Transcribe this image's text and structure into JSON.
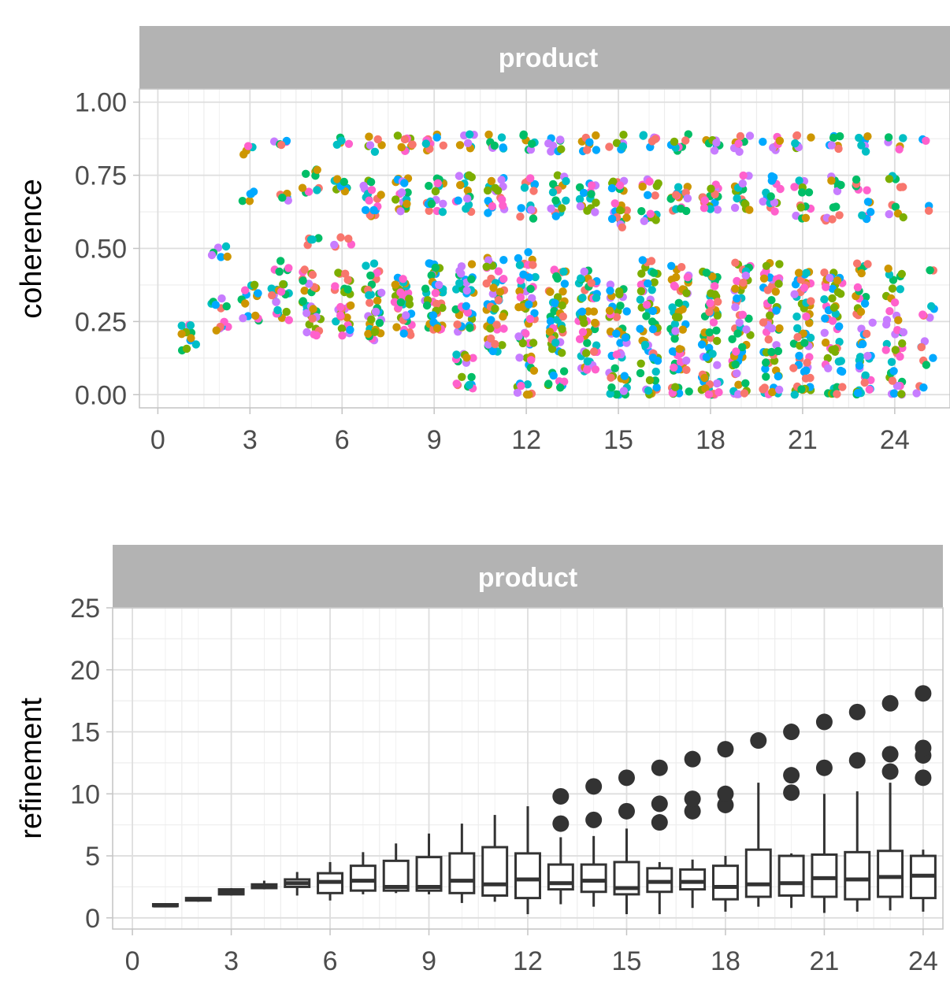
{
  "colors": {
    "strip": "#b3b3b3",
    "grid_major": "#dedede",
    "grid_minor": "#ededed",
    "panel_border": "#c4c4c4",
    "box": "#333333",
    "palette": [
      "#f8766d",
      "#cd9600",
      "#7cae00",
      "#00be67",
      "#00bfc4",
      "#00a9ff",
      "#c77cff",
      "#ff61cc"
    ]
  },
  "chart_data": [
    {
      "type": "scatter",
      "facet_label": "product",
      "xlabel": "",
      "ylabel": "coherence",
      "xlim": [
        -0.6,
        25.8
      ],
      "ylim": [
        -0.045,
        1.045
      ],
      "x_ticks": [
        0,
        3,
        6,
        9,
        12,
        15,
        18,
        21,
        24
      ],
      "x_tick_labels": [
        "0",
        "3",
        "6",
        "9",
        "12",
        "15",
        "18",
        "21",
        "24"
      ],
      "y_ticks": [
        0,
        0.25,
        0.5,
        0.75,
        1.0
      ],
      "y_tick_labels": [
        "0.00",
        "0.25",
        "0.50",
        "0.75",
        "1.00"
      ],
      "grid": true,
      "jitter_width": 0.3,
      "clusters": [
        {
          "x": 1,
          "levels": [
            0.17,
            0.21,
            0.23
          ],
          "band": 0.03,
          "n": 12
        },
        {
          "x": 2,
          "levels": [
            0.23,
            0.31,
            0.49
          ],
          "band": 0.02,
          "n": 18
        },
        {
          "x": 3,
          "levels": [
            0.26,
            0.33,
            0.36,
            0.68,
            0.83
          ],
          "band": 0.02,
          "n": 24
        },
        {
          "x": 4,
          "levels": [
            0.27,
            0.33,
            0.37,
            0.44,
            0.68,
            0.86
          ],
          "band": 0.02,
          "n": 34
        },
        {
          "x": 5,
          "levels": [
            0.22,
            0.27,
            0.3,
            0.37,
            0.41,
            0.52,
            0.71,
            0.76
          ],
          "band": 0.02,
          "n": 44
        },
        {
          "x": 6,
          "levels": [
            0.22,
            0.26,
            0.31,
            0.36,
            0.4,
            0.52,
            0.71,
            0.72,
            0.86
          ],
          "band": 0.02,
          "n": 50
        },
        {
          "x": 7,
          "levels": [
            0.2,
            0.25,
            0.3,
            0.35,
            0.42,
            0.64,
            0.66,
            0.71,
            0.86
          ],
          "band": 0.03,
          "n": 58
        },
        {
          "x": 8,
          "levels": [
            0.23,
            0.28,
            0.33,
            0.39,
            0.65,
            0.71,
            0.86
          ],
          "band": 0.03,
          "n": 64
        },
        {
          "x": 9,
          "levels": [
            0.24,
            0.3,
            0.36,
            0.42,
            0.65,
            0.71,
            0.86
          ],
          "band": 0.03,
          "n": 66
        },
        {
          "x": 10,
          "levels": [
            0.04,
            0.12,
            0.23,
            0.3,
            0.36,
            0.42,
            0.65,
            0.72,
            0.86
          ],
          "band": 0.03,
          "n": 70
        },
        {
          "x": 11,
          "levels": [
            0.17,
            0.25,
            0.31,
            0.37,
            0.44,
            0.65,
            0.72,
            0.86
          ],
          "band": 0.03,
          "n": 74
        },
        {
          "x": 12,
          "levels": [
            0.02,
            0.1,
            0.2,
            0.27,
            0.33,
            0.39,
            0.46,
            0.63,
            0.72,
            0.86
          ],
          "band": 0.03,
          "n": 76
        },
        {
          "x": 13,
          "levels": [
            0.05,
            0.16,
            0.22,
            0.28,
            0.34,
            0.4,
            0.64,
            0.72,
            0.86
          ],
          "band": 0.03,
          "n": 76
        },
        {
          "x": 14,
          "levels": [
            0.09,
            0.16,
            0.22,
            0.28,
            0.34,
            0.41,
            0.64,
            0.7,
            0.86
          ],
          "band": 0.03,
          "n": 78
        },
        {
          "x": 15,
          "levels": [
            0.0,
            0.08,
            0.15,
            0.22,
            0.29,
            0.35,
            0.6,
            0.63,
            0.71,
            0.86
          ],
          "band": 0.03,
          "n": 80
        },
        {
          "x": 16,
          "levels": [
            0.02,
            0.1,
            0.17,
            0.24,
            0.3,
            0.37,
            0.44,
            0.61,
            0.71,
            0.86
          ],
          "band": 0.03,
          "n": 82
        },
        {
          "x": 17,
          "levels": [
            0.0,
            0.1,
            0.16,
            0.22,
            0.29,
            0.36,
            0.42,
            0.65,
            0.69,
            0.86
          ],
          "band": 0.03,
          "n": 82
        },
        {
          "x": 18,
          "levels": [
            0.0,
            0.06,
            0.13,
            0.2,
            0.27,
            0.33,
            0.4,
            0.65,
            0.69,
            0.86
          ],
          "band": 0.03,
          "n": 82
        },
        {
          "x": 19,
          "levels": [
            0.01,
            0.1,
            0.16,
            0.23,
            0.3,
            0.37,
            0.43,
            0.65,
            0.72,
            0.86
          ],
          "band": 0.03,
          "n": 80
        },
        {
          "x": 20,
          "levels": [
            0.0,
            0.09,
            0.16,
            0.23,
            0.3,
            0.37,
            0.42,
            0.65,
            0.72,
            0.86
          ],
          "band": 0.03,
          "n": 78
        },
        {
          "x": 21,
          "levels": [
            0.0,
            0.08,
            0.15,
            0.22,
            0.29,
            0.36,
            0.4,
            0.62,
            0.72,
            0.86
          ],
          "band": 0.03,
          "n": 76
        },
        {
          "x": 22,
          "levels": [
            0.0,
            0.1,
            0.17,
            0.24,
            0.3,
            0.37,
            0.4,
            0.62,
            0.72,
            0.86
          ],
          "band": 0.03,
          "n": 70
        },
        {
          "x": 23,
          "levels": [
            0.0,
            0.07,
            0.14,
            0.2,
            0.27,
            0.34,
            0.42,
            0.63,
            0.72,
            0.86
          ],
          "band": 0.03,
          "n": 62
        },
        {
          "x": 24,
          "levels": [
            0.0,
            0.06,
            0.13,
            0.2,
            0.26,
            0.34,
            0.42,
            0.62,
            0.72,
            0.86
          ],
          "band": 0.03,
          "n": 54
        },
        {
          "x": 25,
          "levels": [
            0.0,
            0.1,
            0.18,
            0.26,
            0.3,
            0.4,
            0.65,
            0.86
          ],
          "band": 0.03,
          "n": 20
        }
      ]
    },
    {
      "type": "box",
      "facet_label": "product",
      "xlabel": "",
      "ylabel": "refinement",
      "xlim": [
        -0.6,
        24.6
      ],
      "ylim": [
        -0.9,
        25.0
      ],
      "x_ticks": [
        0,
        3,
        6,
        9,
        12,
        15,
        18,
        21,
        24
      ],
      "x_tick_labels": [
        "0",
        "3",
        "6",
        "9",
        "12",
        "15",
        "18",
        "21",
        "24"
      ],
      "y_ticks": [
        0,
        5,
        10,
        15,
        20,
        25
      ],
      "y_tick_labels": [
        "0",
        "5",
        "10",
        "15",
        "20",
        "25"
      ],
      "grid": true,
      "boxes": [
        {
          "x": 1,
          "min": 0.9,
          "q1": 0.95,
          "median": 1.0,
          "q3": 1.1,
          "max": 1.15,
          "outliers": []
        },
        {
          "x": 2,
          "min": 1.3,
          "q1": 1.4,
          "median": 1.5,
          "q3": 1.6,
          "max": 1.65,
          "outliers": []
        },
        {
          "x": 3,
          "min": 1.8,
          "q1": 1.9,
          "median": 2.1,
          "q3": 2.3,
          "max": 2.4,
          "outliers": []
        },
        {
          "x": 4,
          "min": 2.3,
          "q1": 2.4,
          "median": 2.5,
          "q3": 2.7,
          "max": 3.0,
          "outliers": []
        },
        {
          "x": 5,
          "min": 1.8,
          "q1": 2.5,
          "median": 2.8,
          "q3": 3.1,
          "max": 3.7,
          "outliers": []
        },
        {
          "x": 6,
          "min": 1.4,
          "q1": 2.0,
          "median": 2.9,
          "q3": 3.6,
          "max": 4.5,
          "outliers": []
        },
        {
          "x": 7,
          "min": 1.9,
          "q1": 2.2,
          "median": 3.0,
          "q3": 4.2,
          "max": 5.3,
          "outliers": []
        },
        {
          "x": 8,
          "min": 2.0,
          "q1": 2.2,
          "median": 2.5,
          "q3": 4.6,
          "max": 6.0,
          "outliers": []
        },
        {
          "x": 9,
          "min": 1.9,
          "q1": 2.2,
          "median": 2.5,
          "q3": 4.9,
          "max": 6.8,
          "outliers": []
        },
        {
          "x": 10,
          "min": 1.2,
          "q1": 2.0,
          "median": 3.0,
          "q3": 5.2,
          "max": 7.6,
          "outliers": []
        },
        {
          "x": 11,
          "min": 1.3,
          "q1": 1.8,
          "median": 2.7,
          "q3": 5.7,
          "max": 8.3,
          "outliers": []
        },
        {
          "x": 12,
          "min": 0.3,
          "q1": 1.6,
          "median": 3.1,
          "q3": 5.2,
          "max": 9.0,
          "outliers": []
        },
        {
          "x": 13,
          "min": 1.1,
          "q1": 2.3,
          "median": 2.8,
          "q3": 4.3,
          "max": 6.5,
          "outliers": [
            7.6,
            9.8
          ]
        },
        {
          "x": 14,
          "min": 0.9,
          "q1": 2.1,
          "median": 3.0,
          "q3": 4.3,
          "max": 6.6,
          "outliers": [
            7.9,
            10.6
          ]
        },
        {
          "x": 15,
          "min": 0.3,
          "q1": 1.9,
          "median": 2.4,
          "q3": 4.5,
          "max": 7.2,
          "outliers": [
            8.6,
            11.3
          ]
        },
        {
          "x": 16,
          "min": 0.3,
          "q1": 2.1,
          "median": 2.9,
          "q3": 4.0,
          "max": 4.5,
          "outliers": [
            7.7,
            9.2,
            12.1
          ]
        },
        {
          "x": 17,
          "min": 0.8,
          "q1": 2.3,
          "median": 2.9,
          "q3": 3.9,
          "max": 4.7,
          "outliers": [
            8.6,
            9.6,
            12.8
          ]
        },
        {
          "x": 18,
          "min": 0.5,
          "q1": 1.5,
          "median": 2.5,
          "q3": 4.2,
          "max": 5.0,
          "outliers": [
            9.1,
            10.0,
            13.6
          ]
        },
        {
          "x": 19,
          "min": 0.9,
          "q1": 1.7,
          "median": 2.7,
          "q3": 5.5,
          "max": 10.9,
          "outliers": [
            14.3
          ]
        },
        {
          "x": 20,
          "min": 0.8,
          "q1": 1.8,
          "median": 2.8,
          "q3": 5.0,
          "max": 5.2,
          "outliers": [
            10.1,
            11.5,
            15.0
          ]
        },
        {
          "x": 21,
          "min": 0.4,
          "q1": 1.7,
          "median": 3.2,
          "q3": 5.1,
          "max": 10.0,
          "outliers": [
            12.1,
            15.8
          ]
        },
        {
          "x": 22,
          "min": 0.5,
          "q1": 1.5,
          "median": 3.1,
          "q3": 5.3,
          "max": 10.2,
          "outliers": [
            12.7,
            16.6
          ]
        },
        {
          "x": 23,
          "min": 0.6,
          "q1": 1.7,
          "median": 3.3,
          "q3": 5.4,
          "max": 10.9,
          "outliers": [
            11.8,
            13.2,
            17.3
          ]
        },
        {
          "x": 24,
          "min": 0.5,
          "q1": 1.6,
          "median": 3.4,
          "q3": 5.0,
          "max": 5.5,
          "outliers": [
            11.3,
            13.1,
            13.7,
            18.1
          ]
        }
      ]
    }
  ]
}
